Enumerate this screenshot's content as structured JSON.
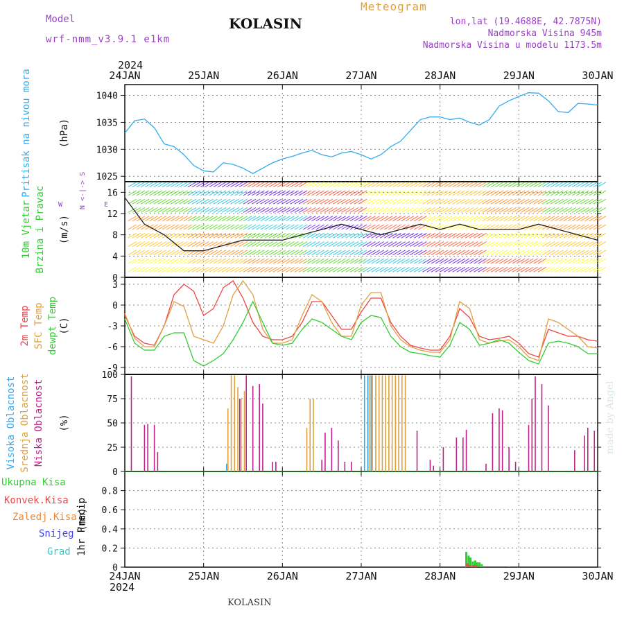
{
  "header": {
    "model_label": "Model",
    "model_name": "wrf-nmm_v3.9.1 e1km",
    "title": "KOLASIN",
    "meteogram": "Meteogram",
    "lonlat": "lon,lat (19.4688E, 42.7875N)",
    "elev": "Nadmorska Visina 945m",
    "elev_model": "Nadmorska Visina u modelu 1173.5m",
    "year_top": "2024",
    "year_bottom": "2024",
    "footer": "KOLASIN",
    "watermark": "made by Angel"
  },
  "colors": {
    "pressure": "#33aaee",
    "temp2m": "#ee4444",
    "sfc": "#e0a040",
    "dew": "#33cc33",
    "high_cloud": "#33aaee",
    "mid_cloud": "#e0a040",
    "low_cloud": "#c0208a",
    "total_precip": "#33cc33",
    "conv_precip": "#ee4444",
    "frz_precip": "#ee8833",
    "snow": "#4444ee",
    "hail": "#33cccc"
  },
  "chart_data": [
    {
      "type": "line",
      "panel": "pressure",
      "ylabel": "Pritisak na nivou mora",
      "unit": "(hPa)",
      "ylim": [
        1024,
        1042
      ],
      "yticks": [
        1025,
        1030,
        1035,
        1040
      ],
      "x_dates": [
        "24JAN",
        "25JAN",
        "26JAN",
        "27JAN",
        "28JAN",
        "29JAN",
        "30JAN"
      ],
      "x_hours": [
        0,
        3,
        6,
        9,
        12,
        15,
        18,
        21,
        24,
        27,
        30,
        33,
        36,
        39,
        42,
        45,
        48,
        51,
        54,
        57,
        60,
        63,
        66,
        69,
        72,
        75,
        78,
        81,
        84,
        87,
        90,
        93,
        96,
        99,
        102,
        105,
        108,
        111,
        114,
        117,
        120,
        123,
        126,
        129,
        132,
        135,
        138,
        141,
        144
      ],
      "values": [
        1033,
        1035.3,
        1035.6,
        1034,
        1031,
        1030.5,
        1029,
        1027,
        1026,
        1025.8,
        1027.5,
        1027.2,
        1026.5,
        1025.5,
        1026.5,
        1027.5,
        1028.2,
        1028.7,
        1029.3,
        1029.8,
        1029,
        1028.6,
        1029.3,
        1029.6,
        1029,
        1028.2,
        1029,
        1030.5,
        1031.5,
        1033.5,
        1035.5,
        1036,
        1036,
        1035.5,
        1035.8,
        1035,
        1034.5,
        1035.5,
        1038,
        1039,
        1039.8,
        1040.5,
        1040.4,
        1039,
        1037,
        1036.8,
        1038.5,
        1038.4,
        1038.2
      ],
      "grid": true
    },
    {
      "type": "barbs",
      "panel": "wind",
      "ylabel": "10m Vjetar Brzina i Pravac",
      "unit": "(m/s)",
      "compass": [
        "N",
        "S",
        "W",
        "E"
      ],
      "ylim": [
        0,
        18
      ],
      "yticks": [
        0,
        4,
        8,
        12,
        16
      ],
      "x_hours": [
        0,
        6,
        12,
        18,
        24,
        30,
        36,
        42,
        48,
        54,
        60,
        66,
        72,
        78,
        84,
        90,
        96,
        102,
        108,
        114,
        120,
        126,
        132,
        138,
        144
      ],
      "speed": [
        15,
        10,
        8,
        5,
        5,
        6,
        7,
        7,
        7,
        8,
        9,
        10,
        9,
        8,
        9,
        10,
        9,
        10,
        9,
        9,
        9,
        10,
        9,
        8,
        7
      ],
      "grid": true
    },
    {
      "type": "line",
      "panel": "temperature",
      "ylabels": [
        "2m Temp",
        "SFC Temp",
        "dewpt Temp"
      ],
      "unit": "(C)",
      "ylim": [
        -10,
        4
      ],
      "yticks": [
        -9,
        -6,
        -3,
        0,
        3
      ],
      "x_hours": [
        0,
        3,
        6,
        9,
        12,
        15,
        18,
        21,
        24,
        27,
        30,
        33,
        36,
        39,
        42,
        45,
        48,
        51,
        54,
        57,
        60,
        63,
        66,
        69,
        72,
        75,
        78,
        81,
        84,
        87,
        90,
        93,
        96,
        99,
        102,
        105,
        108,
        111,
        114,
        117,
        120,
        123,
        126,
        129,
        132,
        135,
        138,
        141,
        144
      ],
      "series": [
        {
          "name": "2m Temp",
          "values": [
            -1.5,
            -4.5,
            -5.5,
            -5.8,
            -3,
            1.5,
            3,
            2,
            -1.5,
            -0.5,
            2.5,
            3.5,
            1,
            -2.5,
            -4.5,
            -5,
            -5,
            -4.5,
            -2.5,
            0.5,
            0.5,
            -1.5,
            -3.5,
            -3.5,
            -1,
            1,
            1,
            -2.5,
            -4.5,
            -5.8,
            -6.2,
            -6.5,
            -6.5,
            -4.5,
            -0.5,
            -1.8,
            -4.5,
            -5,
            -4.8,
            -4.5,
            -5.5,
            -7,
            -7.5,
            -3.5,
            -4,
            -4.5,
            -4.5,
            -5,
            -5.2
          ]
        },
        {
          "name": "SFC Temp",
          "values": [
            -1.2,
            -4.8,
            -6,
            -6,
            -3,
            0.5,
            -0.2,
            -4.5,
            -5,
            -5.5,
            -3,
            1.5,
            3.5,
            1.5,
            -3.5,
            -5.5,
            -5.5,
            -5,
            -1.5,
            1.5,
            0.5,
            -2.5,
            -4.5,
            -4.5,
            0,
            1.8,
            1.8,
            -3,
            -5,
            -6,
            -6.5,
            -6.8,
            -6.8,
            -5,
            0.5,
            -0.5,
            -5,
            -5.5,
            -5.2,
            -5,
            -6,
            -7.5,
            -8,
            -2,
            -2.5,
            -3.5,
            -4.5,
            -6,
            -6.2
          ]
        },
        {
          "name": "dewpt Temp",
          "values": [
            -2,
            -5.5,
            -6.5,
            -6.5,
            -4.5,
            -4,
            -4,
            -8,
            -8.8,
            -8,
            -7,
            -5,
            -2.5,
            0.5,
            -2.5,
            -5.5,
            -5.8,
            -5.5,
            -3.5,
            -2,
            -2.5,
            -3.5,
            -4.5,
            -5,
            -2.5,
            -1.5,
            -1.8,
            -4.5,
            -6,
            -6.8,
            -7,
            -7.3,
            -7.5,
            -5.8,
            -2.5,
            -3.5,
            -5.8,
            -5.5,
            -5,
            -5.5,
            -6.8,
            -8,
            -8.5,
            -5.5,
            -5.2,
            -5.5,
            -6,
            -7,
            -7
          ]
        }
      ],
      "grid": true
    },
    {
      "type": "bar",
      "panel": "clouds",
      "ylabels": [
        "Visoka Oblacnost",
        "Srednja Oblacnost",
        "Niska Oblacnost"
      ],
      "unit": "(%)",
      "ylim": [
        0,
        100
      ],
      "yticks": [
        0,
        25,
        50,
        75,
        100
      ],
      "series": [
        {
          "name": "Niska Oblacnost",
          "x_hours": [
            2,
            6,
            7,
            9,
            10,
            35,
            37,
            39,
            41,
            42,
            45,
            46,
            60,
            61,
            63,
            65,
            67,
            69,
            89,
            93,
            94,
            97,
            101,
            103,
            104,
            110,
            112,
            114,
            115,
            117,
            119,
            123,
            124,
            125,
            127,
            129,
            137,
            140,
            141,
            143
          ],
          "values": [
            98,
            48,
            49,
            48,
            20,
            75,
            99,
            88,
            90,
            70,
            10,
            10,
            12,
            40,
            45,
            32,
            10,
            10,
            42,
            12,
            6,
            25,
            35,
            35,
            43,
            8,
            60,
            65,
            63,
            25,
            10,
            48,
            75,
            98,
            90,
            68,
            22,
            37,
            45,
            42
          ]
        },
        {
          "name": "Srednja Oblacnost",
          "x_hours": [
            31,
            32,
            33,
            34,
            35,
            36,
            55,
            56,
            57,
            74,
            75,
            76,
            77,
            78,
            79,
            80,
            81,
            82,
            83,
            84,
            85
          ],
          "values": [
            65,
            99,
            99,
            87,
            75,
            83,
            45,
            75,
            75,
            99,
            99,
            99,
            99,
            99,
            99,
            99,
            99,
            99,
            99,
            99,
            99
          ]
        },
        {
          "name": "Visoka Oblacnost",
          "x_hours": [
            31,
            73,
            74,
            75
          ],
          "values": [
            8,
            99,
            99,
            99
          ]
        }
      ],
      "grid": true
    },
    {
      "type": "bar",
      "panel": "precipitation",
      "ylabel": "1hr Precip",
      "unit": "(mm)",
      "legend": [
        "Ukupna Kisa",
        "Konvek.Kisa",
        "Zaledj.Kisa",
        "Snijeg",
        "Grad"
      ],
      "ylim": [
        0,
        1
      ],
      "yticks": [
        0,
        0.2,
        0.4,
        0.6,
        0.8
      ],
      "series": [
        {
          "name": "Ukupna Kisa",
          "x_hours": [
            104,
            104.7,
            105.3,
            106,
            106.7,
            107.3,
            108,
            108.7,
            117
          ],
          "values": [
            0.16,
            0.12,
            0.1,
            0.06,
            0.07,
            0.05,
            0.05,
            0.03,
            0.01
          ]
        },
        {
          "name": "Konvek.Kisa",
          "x_hours": [
            104.3,
            105,
            105.7,
            106.3,
            107,
            107.7
          ],
          "values": [
            0.04,
            0.02,
            0.01,
            0.02,
            0.02,
            0.01
          ]
        }
      ],
      "grid": true
    }
  ]
}
